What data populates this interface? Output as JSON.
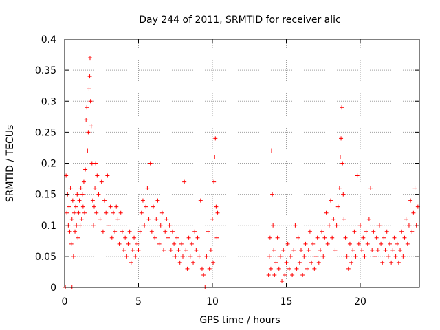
{
  "chart_data": {
    "type": "scatter",
    "title": "Day 244 of 2011, SRMTID for receiver alic",
    "xlabel": "GPS time / hours",
    "ylabel": "SRMTID / TECUs",
    "xlim": [
      0,
      24
    ],
    "ylim": [
      0,
      0.4
    ],
    "xticks": [
      0,
      5,
      10,
      15,
      20
    ],
    "xtick_labels": [
      "0",
      "5",
      "10",
      "15",
      "20"
    ],
    "yticks": [
      0,
      0.05,
      0.1,
      0.15,
      0.2,
      0.25,
      0.3,
      0.35,
      0.4
    ],
    "ytick_labels": [
      "0",
      "0.05",
      "0.1",
      "0.15",
      "0.2",
      "0.25",
      "0.3",
      "0.35",
      "0.4"
    ],
    "grid": true,
    "marker": "+",
    "color": "#ff0000",
    "series": [
      {
        "name": "SRMTID",
        "points": [
          [
            0.05,
            0.0
          ],
          [
            0.1,
            0.18
          ],
          [
            0.15,
            0.12
          ],
          [
            0.2,
            0.15
          ],
          [
            0.25,
            0.1
          ],
          [
            0.3,
            0.13
          ],
          [
            0.35,
            0.09
          ],
          [
            0.4,
            0.16
          ],
          [
            0.45,
            0.07
          ],
          [
            0.5,
            0.11
          ],
          [
            0.5,
            0.0
          ],
          [
            0.55,
            0.14
          ],
          [
            0.6,
            0.05
          ],
          [
            0.65,
            0.12
          ],
          [
            0.7,
            0.09
          ],
          [
            0.75,
            0.13
          ],
          [
            0.8,
            0.1
          ],
          [
            0.85,
            0.15
          ],
          [
            0.9,
            0.08
          ],
          [
            0.95,
            0.12
          ],
          [
            1.0,
            0.14
          ],
          [
            1.05,
            0.1
          ],
          [
            1.1,
            0.16
          ],
          [
            1.15,
            0.11
          ],
          [
            1.2,
            0.15
          ],
          [
            1.25,
            0.13
          ],
          [
            1.3,
            0.17
          ],
          [
            1.35,
            0.12
          ],
          [
            1.4,
            0.19
          ],
          [
            1.45,
            0.27
          ],
          [
            1.5,
            0.29
          ],
          [
            1.55,
            0.22
          ],
          [
            1.6,
            0.25
          ],
          [
            1.65,
            0.32
          ],
          [
            1.7,
            0.34
          ],
          [
            1.72,
            0.37
          ],
          [
            1.75,
            0.3
          ],
          [
            1.8,
            0.26
          ],
          [
            1.85,
            0.2
          ],
          [
            1.9,
            0.14
          ],
          [
            1.95,
            0.1
          ],
          [
            2.0,
            0.13
          ],
          [
            2.05,
            0.16
          ],
          [
            2.1,
            0.2
          ],
          [
            2.15,
            0.12
          ],
          [
            2.2,
            0.18
          ],
          [
            2.3,
            0.15
          ],
          [
            2.4,
            0.11
          ],
          [
            2.5,
            0.17
          ],
          [
            2.6,
            0.09
          ],
          [
            2.7,
            0.14
          ],
          [
            2.8,
            0.12
          ],
          [
            2.9,
            0.18
          ],
          [
            3.0,
            0.1
          ],
          [
            3.1,
            0.13
          ],
          [
            3.2,
            0.08
          ],
          [
            3.3,
            0.12
          ],
          [
            3.4,
            0.09
          ],
          [
            3.5,
            0.13
          ],
          [
            3.6,
            0.11
          ],
          [
            3.7,
            0.07
          ],
          [
            3.8,
            0.12
          ],
          [
            3.9,
            0.09
          ],
          [
            4.0,
            0.06
          ],
          [
            4.1,
            0.08
          ],
          [
            4.2,
            0.05
          ],
          [
            4.3,
            0.07
          ],
          [
            4.4,
            0.09
          ],
          [
            4.5,
            0.04
          ],
          [
            4.6,
            0.06
          ],
          [
            4.7,
            0.08
          ],
          [
            4.8,
            0.05
          ],
          [
            4.9,
            0.07
          ],
          [
            5.0,
            0.06
          ],
          [
            5.1,
            0.09
          ],
          [
            5.2,
            0.12
          ],
          [
            5.3,
            0.14
          ],
          [
            5.4,
            0.1
          ],
          [
            5.5,
            0.13
          ],
          [
            5.6,
            0.16
          ],
          [
            5.7,
            0.11
          ],
          [
            5.8,
            0.2
          ],
          [
            5.9,
            0.09
          ],
          [
            6.0,
            0.13
          ],
          [
            6.1,
            0.08
          ],
          [
            6.2,
            0.11
          ],
          [
            6.3,
            0.14
          ],
          [
            6.4,
            0.07
          ],
          [
            6.5,
            0.1
          ],
          [
            6.6,
            0.12
          ],
          [
            6.7,
            0.06
          ],
          [
            6.8,
            0.09
          ],
          [
            6.9,
            0.11
          ],
          [
            7.0,
            0.08
          ],
          [
            7.1,
            0.1
          ],
          [
            7.2,
            0.06
          ],
          [
            7.3,
            0.09
          ],
          [
            7.4,
            0.07
          ],
          [
            7.5,
            0.05
          ],
          [
            7.6,
            0.08
          ],
          [
            7.7,
            0.06
          ],
          [
            7.8,
            0.04
          ],
          [
            7.9,
            0.07
          ],
          [
            8.0,
            0.05
          ],
          [
            8.1,
            0.17
          ],
          [
            8.2,
            0.06
          ],
          [
            8.3,
            0.03
          ],
          [
            8.4,
            0.08
          ],
          [
            8.5,
            0.05
          ],
          [
            8.6,
            0.07
          ],
          [
            8.7,
            0.04
          ],
          [
            8.8,
            0.09
          ],
          [
            8.9,
            0.06
          ],
          [
            9.0,
            0.08
          ],
          [
            9.1,
            0.05
          ],
          [
            9.2,
            0.14
          ],
          [
            9.3,
            0.03
          ],
          [
            9.4,
            0.02
          ],
          [
            9.5,
            0.0
          ],
          [
            9.6,
            0.05
          ],
          [
            9.7,
            0.09
          ],
          [
            9.8,
            0.03
          ],
          [
            9.9,
            0.06
          ],
          [
            10.0,
            0.11
          ],
          [
            10.05,
            0.04
          ],
          [
            10.1,
            0.17
          ],
          [
            10.15,
            0.21
          ],
          [
            10.2,
            0.24
          ],
          [
            10.25,
            0.13
          ],
          [
            10.3,
            0.08
          ],
          [
            10.35,
            0.12
          ],
          [
            13.8,
            0.02
          ],
          [
            13.85,
            0.05
          ],
          [
            13.9,
            0.08
          ],
          [
            13.95,
            0.03
          ],
          [
            14.0,
            0.22
          ],
          [
            14.05,
            0.15
          ],
          [
            14.1,
            0.1
          ],
          [
            14.15,
            0.06
          ],
          [
            14.2,
            0.02
          ],
          [
            14.3,
            0.04
          ],
          [
            14.4,
            0.08
          ],
          [
            14.5,
            0.03
          ],
          [
            14.6,
            0.05
          ],
          [
            14.7,
            0.01
          ],
          [
            14.8,
            0.06
          ],
          [
            14.9,
            0.02
          ],
          [
            15.0,
            0.04
          ],
          [
            15.1,
            0.07
          ],
          [
            15.2,
            0.03
          ],
          [
            15.3,
            0.05
          ],
          [
            15.4,
            0.02
          ],
          [
            15.5,
            0.06
          ],
          [
            15.6,
            0.1
          ],
          [
            15.7,
            0.03
          ],
          [
            15.8,
            0.08
          ],
          [
            15.9,
            0.04
          ],
          [
            16.0,
            0.06
          ],
          [
            16.1,
            0.02
          ],
          [
            16.2,
            0.05
          ],
          [
            16.3,
            0.07
          ],
          [
            16.4,
            0.03
          ],
          [
            16.5,
            0.06
          ],
          [
            16.6,
            0.09
          ],
          [
            16.7,
            0.04
          ],
          [
            16.8,
            0.07
          ],
          [
            16.9,
            0.03
          ],
          [
            17.0,
            0.05
          ],
          [
            17.1,
            0.08
          ],
          [
            17.2,
            0.04
          ],
          [
            17.3,
            0.06
          ],
          [
            17.4,
            0.09
          ],
          [
            17.5,
            0.05
          ],
          [
            17.6,
            0.08
          ],
          [
            17.7,
            0.12
          ],
          [
            17.8,
            0.07
          ],
          [
            17.9,
            0.1
          ],
          [
            18.0,
            0.14
          ],
          [
            18.1,
            0.08
          ],
          [
            18.2,
            0.11
          ],
          [
            18.3,
            0.06
          ],
          [
            18.4,
            0.1
          ],
          [
            18.5,
            0.13
          ],
          [
            18.6,
            0.16
          ],
          [
            18.65,
            0.21
          ],
          [
            18.7,
            0.24
          ],
          [
            18.75,
            0.29
          ],
          [
            18.8,
            0.2
          ],
          [
            18.85,
            0.15
          ],
          [
            18.9,
            0.11
          ],
          [
            19.0,
            0.08
          ],
          [
            19.1,
            0.05
          ],
          [
            19.2,
            0.03
          ],
          [
            19.3,
            0.07
          ],
          [
            19.4,
            0.04
          ],
          [
            19.5,
            0.06
          ],
          [
            19.6,
            0.09
          ],
          [
            19.7,
            0.05
          ],
          [
            19.8,
            0.18
          ],
          [
            19.9,
            0.07
          ],
          [
            20.0,
            0.1
          ],
          [
            20.1,
            0.06
          ],
          [
            20.2,
            0.08
          ],
          [
            20.3,
            0.05
          ],
          [
            20.4,
            0.09
          ],
          [
            20.5,
            0.07
          ],
          [
            20.6,
            0.11
          ],
          [
            20.7,
            0.16
          ],
          [
            20.8,
            0.06
          ],
          [
            20.9,
            0.09
          ],
          [
            21.0,
            0.05
          ],
          [
            21.1,
            0.08
          ],
          [
            21.2,
            0.06
          ],
          [
            21.3,
            0.1
          ],
          [
            21.4,
            0.07
          ],
          [
            21.5,
            0.04
          ],
          [
            21.6,
            0.08
          ],
          [
            21.7,
            0.06
          ],
          [
            21.8,
            0.09
          ],
          [
            21.9,
            0.05
          ],
          [
            22.0,
            0.07
          ],
          [
            22.1,
            0.04
          ],
          [
            22.2,
            0.06
          ],
          [
            22.3,
            0.08
          ],
          [
            22.4,
            0.05
          ],
          [
            22.5,
            0.07
          ],
          [
            22.6,
            0.04
          ],
          [
            22.7,
            0.06
          ],
          [
            22.8,
            0.09
          ],
          [
            22.9,
            0.05
          ],
          [
            23.0,
            0.08
          ],
          [
            23.1,
            0.11
          ],
          [
            23.2,
            0.07
          ],
          [
            23.3,
            0.1
          ],
          [
            23.4,
            0.14
          ],
          [
            23.5,
            0.09
          ],
          [
            23.6,
            0.12
          ],
          [
            23.7,
            0.16
          ],
          [
            23.8,
            0.1
          ],
          [
            23.9,
            0.13
          ]
        ]
      }
    ]
  }
}
